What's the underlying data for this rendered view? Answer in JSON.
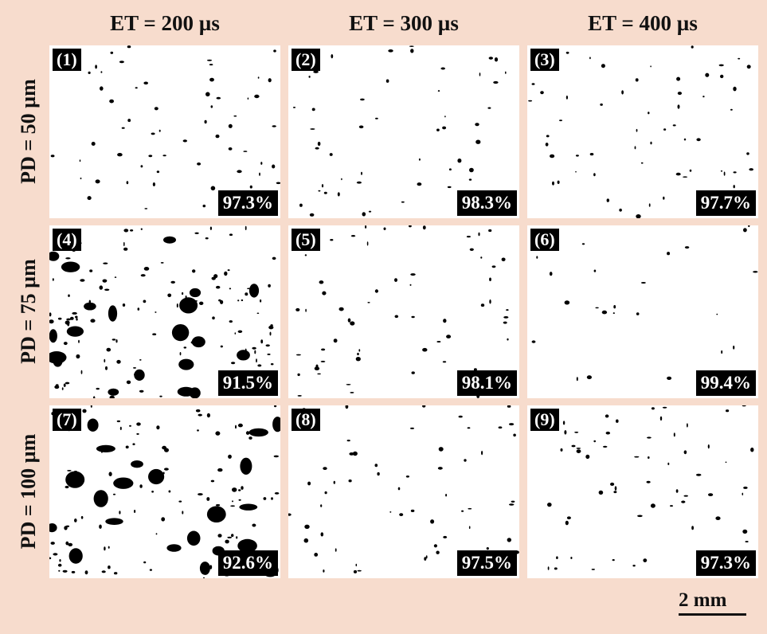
{
  "column_headers": [
    "ET = 200 µs",
    "ET = 300 µs",
    "ET = 400 µs"
  ],
  "row_headers": [
    "PD = 50 µm",
    "PD = 75 µm",
    "PD = 100 µm"
  ],
  "panels": [
    {
      "label": "(1)",
      "density": "97.3%"
    },
    {
      "label": "(2)",
      "density": "98.3%"
    },
    {
      "label": "(3)",
      "density": "97.7%"
    },
    {
      "label": "(4)",
      "density": "91.5%"
    },
    {
      "label": "(5)",
      "density": "98.1%"
    },
    {
      "label": "(6)",
      "density": "99.4%"
    },
    {
      "label": "(7)",
      "density": "92.6%"
    },
    {
      "label": "(8)",
      "density": "97.5%"
    },
    {
      "label": "(9)",
      "density": "97.3%"
    }
  ],
  "scale_bar": "2 mm"
}
